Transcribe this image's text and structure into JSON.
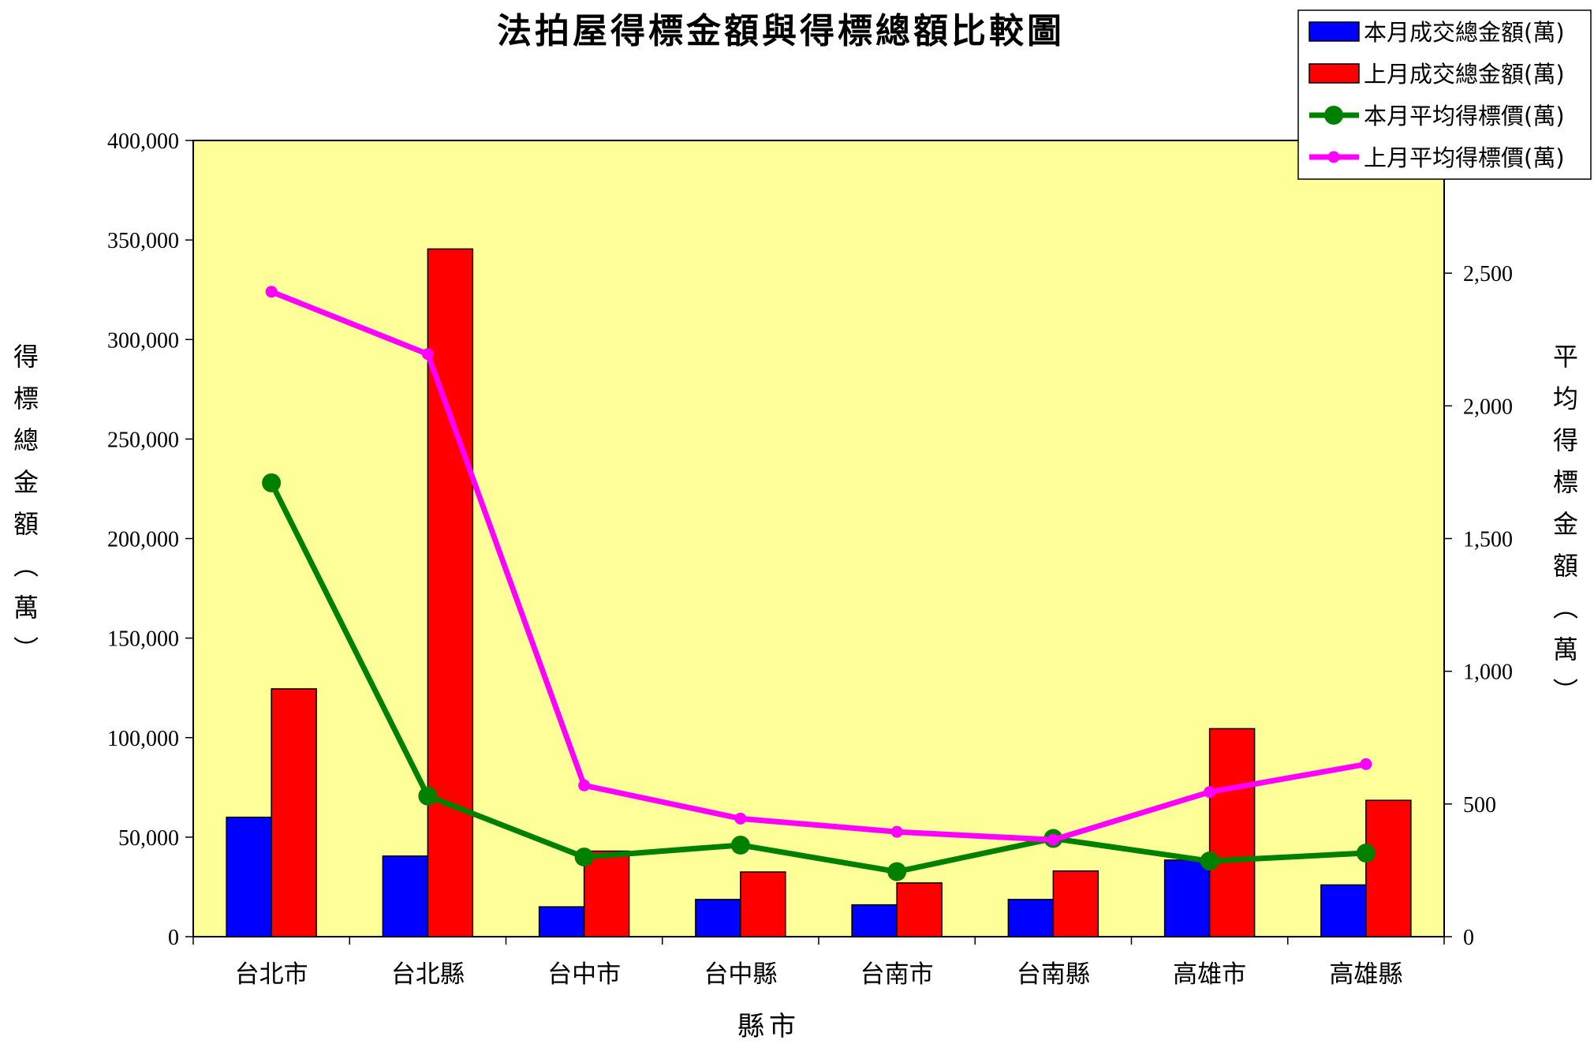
{
  "chart_data": {
    "type": "bar",
    "title": "法拍屋得標金額與得標總額比較圖",
    "xlabel": "縣市",
    "ylabel": "得標總金額︵萬︶",
    "y2label": "平均得標金額︵萬︶",
    "categories": [
      "台北市",
      "台北縣",
      "台中市",
      "台中縣",
      "台南市",
      "台南縣",
      "高雄市",
      "高雄縣"
    ],
    "ylim": [
      0,
      400000
    ],
    "yticks": [
      "0",
      "50,000",
      "100,000",
      "150,000",
      "200,000",
      "250,000",
      "300,000",
      "350,000",
      "400,000"
    ],
    "y2lim": [
      0,
      3000
    ],
    "y2ticks": [
      "0",
      "500",
      "1,000",
      "1,500",
      "2,000",
      "2,500"
    ],
    "grid": false,
    "legend_position": "top-right",
    "plot_background": "#FFFF99",
    "series": [
      {
        "name": "本月成交總金額(萬)",
        "kind": "bar",
        "axis": "left",
        "color": "#0000FF",
        "values": [
          60000,
          40500,
          15000,
          18700,
          16000,
          18700,
          38500,
          26000
        ]
      },
      {
        "name": "上月成交總金額(萬)",
        "kind": "bar",
        "axis": "left",
        "color": "#FF0000",
        "values": [
          124500,
          345500,
          43000,
          32500,
          27000,
          33000,
          104500,
          68500
        ]
      },
      {
        "name": "本月平均得標價(萬)",
        "kind": "line",
        "axis": "right",
        "color": "#008000",
        "values": [
          1710,
          530,
          300,
          345,
          245,
          370,
          285,
          315
        ]
      },
      {
        "name": "上月平均得標價(萬)",
        "kind": "line",
        "axis": "right",
        "color": "#FF00FF",
        "values": [
          2430,
          2195,
          570,
          445,
          395,
          365,
          545,
          650
        ]
      }
    ]
  }
}
